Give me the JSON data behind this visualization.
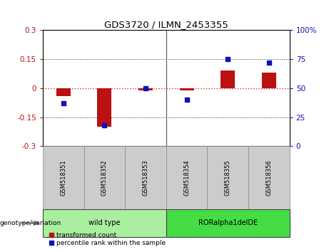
{
  "title": "GDS3720 / ILMN_2453355",
  "samples": [
    "GSM518351",
    "GSM518352",
    "GSM518353",
    "GSM518354",
    "GSM518355",
    "GSM518356"
  ],
  "transformed_count": [
    -0.04,
    -0.2,
    -0.01,
    -0.01,
    0.09,
    0.08
  ],
  "percentile_rank": [
    37,
    18,
    50,
    40,
    75,
    72
  ],
  "ylim_left": [
    -0.3,
    0.3
  ],
  "ylim_right": [
    0,
    100
  ],
  "yticks_left": [
    -0.3,
    -0.15,
    0,
    0.15,
    0.3
  ],
  "yticks_right": [
    0,
    25,
    50,
    75,
    100
  ],
  "ytick_labels_left": [
    "-0.3",
    "-0.15",
    "0",
    "0.15",
    "0.3"
  ],
  "ytick_labels_right": [
    "0",
    "25",
    "50",
    "75",
    "100%"
  ],
  "bar_color": "#bb1111",
  "scatter_color": "#1111bb",
  "zero_line_color": "#cc3333",
  "grid_line_color": "#333333",
  "genotype_groups": [
    {
      "label": "wild type",
      "start": 0,
      "end": 3,
      "color": "#aaeea0"
    },
    {
      "label": "RORalpha1delDE",
      "start": 3,
      "end": 6,
      "color": "#44dd44"
    }
  ],
  "genotype_label": "genotype/variation",
  "legend_red": "transformed count",
  "legend_blue": "percentile rank within the sample",
  "bar_width": 0.35,
  "background_color": "#ffffff",
  "tick_area_bg": "#cccccc",
  "separator_color": "#555555"
}
